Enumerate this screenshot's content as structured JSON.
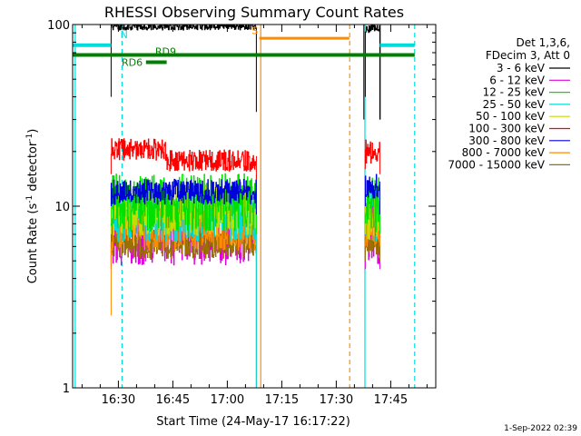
{
  "chart_data": {
    "type": "line",
    "title": "RHESSI Observing Summary Count Rates",
    "xlabel": "Start Time (24-May-17 16:17:22)",
    "ylabel_main": "Count Rate (s",
    "ylabel_sup": "-1",
    "ylabel_mid": " detector",
    "ylabel_end": ")",
    "y_scale": "log",
    "ylim": [
      1,
      100
    ],
    "y_ticks": [
      {
        "v": 1,
        "label": "1"
      },
      {
        "v": 10,
        "label": "10"
      },
      {
        "v": 100,
        "label": "100"
      }
    ],
    "x_range_minutes": [
      977.4,
      1077.4
    ],
    "x_ticks": [
      {
        "m": 990,
        "label": "16:30"
      },
      {
        "m": 1005,
        "label": "16:45"
      },
      {
        "m": 1020,
        "label": "17:00"
      },
      {
        "m": 1035,
        "label": "17:15"
      },
      {
        "m": 1050,
        "label": "17:30"
      },
      {
        "m": 1065,
        "label": "17:45"
      }
    ],
    "legend_header": [
      "Det 1,3,6,",
      "FDecim 3, Att 0"
    ],
    "legend_position": "right",
    "series": [
      {
        "name": "3 - 6 keV",
        "color": "#000000",
        "segments": [
          {
            "start": 988.0,
            "end": 1028.0,
            "base": 95,
            "noise": 0.04,
            "ends": [
              40,
              33
            ]
          },
          {
            "start": 1058.0,
            "end": 1062.0,
            "base": 92,
            "noise": 0.04,
            "ends": [
              40,
              30
            ]
          }
        ]
      },
      {
        "name": "6 - 12 keV",
        "color": "#e000e0",
        "segments": [
          {
            "start": 988.0,
            "end": 1028.0,
            "base": 6.0,
            "noise": 0.17,
            "ends": [
              4.5,
              1.0
            ]
          },
          {
            "start": 1058.0,
            "end": 1062.0,
            "base": 6.0,
            "noise": 0.17,
            "ends": [
              4.5,
              4.5
            ]
          }
        ]
      },
      {
        "name": "12 - 25 keV",
        "color": "#00e000",
        "segments": [
          {
            "start": 988.0,
            "end": 1028.0,
            "base": 10.5,
            "noise": 0.16,
            "ends": [
              8,
              7
            ]
          },
          {
            "start": 1058.0,
            "end": 1062.0,
            "base": 10.0,
            "noise": 0.16,
            "ends": [
              8,
              7
            ]
          }
        ]
      },
      {
        "name": "25 - 50 keV",
        "color": "#00dcdc",
        "segments": [
          {
            "start": 988.0,
            "end": 1028.0,
            "base": 9.0,
            "noise": 0.15,
            "ends": [
              7,
              1.0
            ]
          },
          {
            "start": 1058.0,
            "end": 1062.0,
            "base": 9.0,
            "noise": 0.15,
            "ends": [
              7,
              7
            ]
          }
        ]
      },
      {
        "name": "50 - 100 keV",
        "color": "#c8dc00",
        "segments": [
          {
            "start": 988.0,
            "end": 1028.0,
            "base": 9.5,
            "noise": 0.14,
            "ends": [
              7,
              7
            ]
          },
          {
            "start": 1058.0,
            "end": 1062.0,
            "base": 9.0,
            "noise": 0.14,
            "ends": [
              7,
              7
            ]
          }
        ]
      },
      {
        "name": "100 - 300 keV",
        "color": "#ff0000",
        "segments": [
          {
            "start": 988.0,
            "end": 1028.0,
            "base": 18.5,
            "noise": 0.06,
            "ends": [
              15,
              14
            ]
          },
          {
            "start": 1058.0,
            "end": 1062.0,
            "base": 20.0,
            "noise": 0.07,
            "ends": [
              16,
              15
            ]
          }
        ]
      },
      {
        "name": "300 - 800 keV",
        "color": "#0000dd",
        "segments": [
          {
            "start": 988.0,
            "end": 1028.0,
            "base": 12.0,
            "noise": 0.07,
            "ends": [
              10,
              9
            ]
          },
          {
            "start": 1058.0,
            "end": 1062.0,
            "base": 13.0,
            "noise": 0.07,
            "ends": [
              10,
              9
            ]
          }
        ]
      },
      {
        "name": "800 - 7000 keV",
        "color": "#ff8c00",
        "segments": [
          {
            "start": 988.0,
            "end": 1028.0,
            "base": 7.5,
            "noise": 0.12,
            "ends": [
              2.5,
              1.0
            ]
          },
          {
            "start": 1058.0,
            "end": 1062.0,
            "base": 8.0,
            "noise": 0.12,
            "ends": [
              6,
              6
            ]
          }
        ]
      },
      {
        "name": "7000 - 15000 keV",
        "color": "#9a7000",
        "segments": [
          {
            "start": 988.0,
            "end": 1028.0,
            "base": 6.2,
            "noise": 0.08,
            "ends": [
              5,
              5
            ]
          },
          {
            "start": 1058.0,
            "end": 1062.0,
            "base": 6.5,
            "noise": 0.08,
            "ends": [
              5,
              5
            ]
          }
        ]
      }
    ],
    "annotations": {
      "vlines_cyan_solid": [
        978.1,
        1057.9
      ],
      "vlines_cyan_dashed": [
        991.0,
        1071.6
      ],
      "vlines_orange_solid": [
        1029.2
      ],
      "vlines_orange_dashed": [
        1053.7
      ],
      "vlines_black": [
        1057.6,
        1062.1
      ],
      "cyan_bars": [
        {
          "start": 977.4,
          "end": 988.0,
          "y": 77
        },
        {
          "start": 1062.0,
          "end": 1071.6,
          "y": 77
        }
      ],
      "orange_bars": [
        {
          "start": 1028.8,
          "end": 1053.6,
          "y": 84
        }
      ],
      "green_bars": [
        {
          "start": 977.4,
          "end": 1071.6,
          "y": 68
        },
        {
          "start": 997.6,
          "end": 1003.3,
          "y": 62
        }
      ],
      "texts": [
        {
          "text": "N",
          "m": 991.6,
          "y": 88,
          "color": "#00dcdc"
        },
        {
          "text": "S",
          "m": 1027.6,
          "y": 93,
          "color": "#ff8c00"
        },
        {
          "text": "RD9",
          "m": 1003.0,
          "y": 71,
          "color": "#008000"
        },
        {
          "text": "RD6",
          "m": 993.8,
          "y": 62,
          "color": "#008000"
        }
      ]
    }
  },
  "footer_timestamp": "1-Sep-2022 02:39"
}
